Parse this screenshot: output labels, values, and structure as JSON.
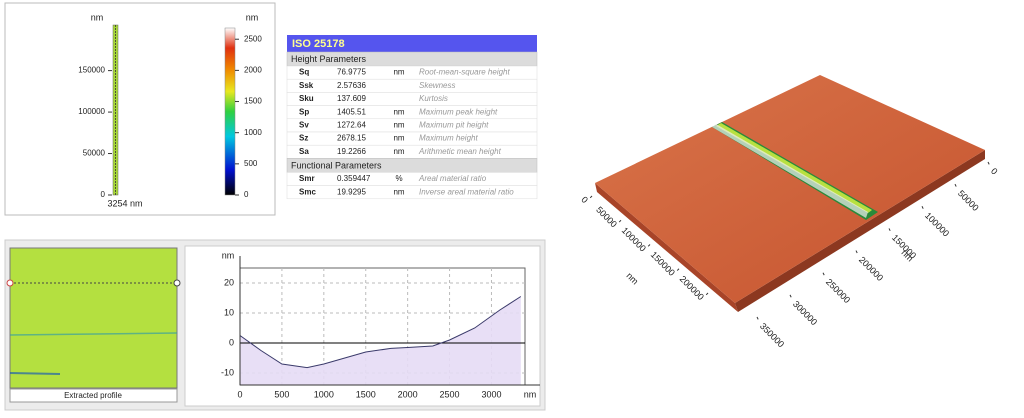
{
  "topography": {
    "unit": "nm",
    "yticks": [
      0,
      50000,
      100000,
      150000
    ],
    "ylim": [
      0,
      205000
    ],
    "x_label": "3254 nm"
  },
  "color_scale": {
    "unit": "nm",
    "ticks": [
      0,
      500,
      1000,
      1500,
      2000,
      2500
    ],
    "lim": [
      0,
      2680
    ]
  },
  "iso_table": {
    "title": "ISO 25178",
    "sections": [
      {
        "title": "Height Parameters",
        "rows": [
          {
            "name": "Sq",
            "value": 76.9775,
            "unit": "nm",
            "description": "Root-mean-square height"
          },
          {
            "name": "Ssk",
            "value": 2.57636,
            "description": "Skewness"
          },
          {
            "name": "Sku",
            "value": 137.609,
            "description": "Kurtosis"
          },
          {
            "name": "Sp",
            "value": 1405.51,
            "unit": "nm",
            "description": "Maximum peak height"
          },
          {
            "name": "Sv",
            "value": 1272.64,
            "unit": "nm",
            "description": "Maximum pit height"
          },
          {
            "name": "Sz",
            "value": 2678.15,
            "unit": "nm",
            "description": "Maximum height"
          },
          {
            "name": "Sa",
            "value": 19.2266,
            "unit": "nm",
            "description": "Arithmetic mean height"
          }
        ]
      },
      {
        "title": "Functional Parameters",
        "rows": [
          {
            "name": "Smr",
            "value": 0.359447,
            "unit": "%",
            "description": "Areal material ratio"
          },
          {
            "name": "Smc",
            "value": 19.9295,
            "unit": "nm",
            "description": "Inverse areal material ratio"
          }
        ]
      }
    ]
  },
  "profile_image": {
    "label": "Extracted profile"
  },
  "profile_chart": {
    "type": "line",
    "x": [
      0,
      250,
      500,
      800,
      1000,
      1250,
      1500,
      1800,
      2000,
      2300,
      2500,
      2800,
      3100,
      3350
    ],
    "values": [
      2.5,
      -2.5,
      -7,
      -8.2,
      -7,
      -5,
      -3,
      -1.8,
      -1.5,
      -1,
      1,
      5,
      11,
      15.5
    ],
    "xlim": [
      0,
      3400
    ],
    "ylim": [
      -14,
      25
    ],
    "xticks": [
      0,
      500,
      1000,
      1500,
      2000,
      2500,
      3000
    ],
    "yticks": [
      -10,
      0,
      10,
      20
    ],
    "x_label": "nm",
    "y_label": "nm",
    "grid": true,
    "color": "#3a3a6a",
    "fill": "#e6dbf5"
  },
  "view_3d": {
    "axis_left": {
      "ticks": [
        0,
        50000,
        100000,
        150000,
        200000
      ],
      "lim": [
        0,
        200000
      ],
      "label": "nm"
    },
    "axis_right": {
      "ticks": [
        0,
        50000,
        100000,
        150000,
        200000,
        250000,
        300000,
        350000
      ],
      "lim": [
        0,
        350000
      ],
      "label": "nm"
    }
  }
}
